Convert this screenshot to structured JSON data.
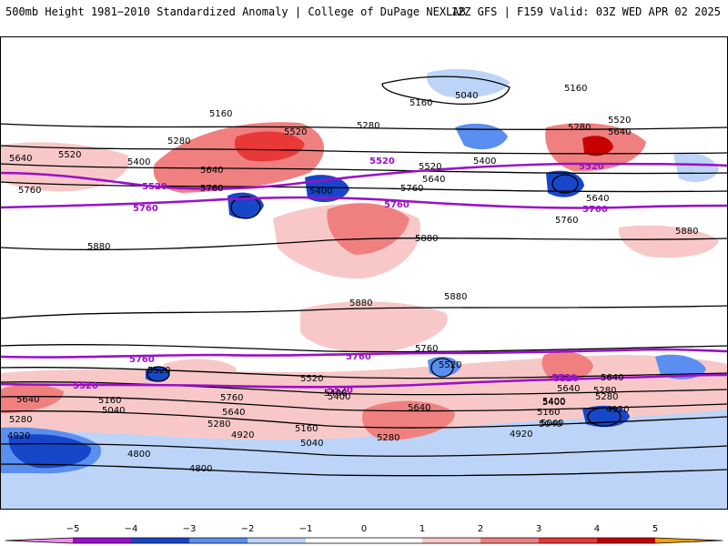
{
  "header": {
    "title": "500mb Height 1981−2010 Standardized Anomaly | College of DuPage NEXLAB",
    "run_info": "12Z GFS | F159 Valid: 03Z WED APR 02 2025"
  },
  "map": {
    "variable": "500mb Height",
    "anomaly_fill_colors": {
      "-5": "#f08cf0",
      "-4": "#9a10c8",
      "-3": "#1846c8",
      "-2": "#5a8ef0",
      "-1": "#bcd4f8",
      "0": "#ffffff",
      "1": "#f8c8c8",
      "2": "#f08080",
      "3": "#e83838",
      "4": "#c80000",
      "5": "#f8a000"
    },
    "highlight_contour_color": "#9a10c8",
    "highlight_contours": [
      "5520",
      "5760"
    ],
    "contour_labels": [
      "5160",
      "5040",
      "5160",
      "5280",
      "5160",
      "5520",
      "5280",
      "5640",
      "5640",
      "5520",
      "5400",
      "5280",
      "5520",
      "5640",
      "5760",
      "5520",
      "5760",
      "5520",
      "5520",
      "5400",
      "5640",
      "5760",
      "5880",
      "5880",
      "5880",
      "5880",
      "5760",
      "5640",
      "5520",
      "5400",
      "5760",
      "5880",
      "5760",
      "5760",
      "5760",
      "5760",
      "5520",
      "5520",
      "5520",
      "5520",
      "5640",
      "5160",
      "5040",
      "5280",
      "5520",
      "5640",
      "5400",
      "5280",
      "5160",
      "5040",
      "4920",
      "4920",
      "4800",
      "4800",
      "5760",
      "5400",
      "5520",
      "5640",
      "5760",
      "5640",
      "5400",
      "5280",
      "5160",
      "5040",
      "4920",
      "5520",
      "5400",
      "5640",
      "5280",
      "5280",
      "5040",
      "4920"
    ]
  },
  "colorbar": {
    "tick_labels": [
      "−5",
      "−4",
      "−3",
      "−2",
      "−1",
      "0",
      "1",
      "2",
      "3",
      "4",
      "5"
    ]
  }
}
